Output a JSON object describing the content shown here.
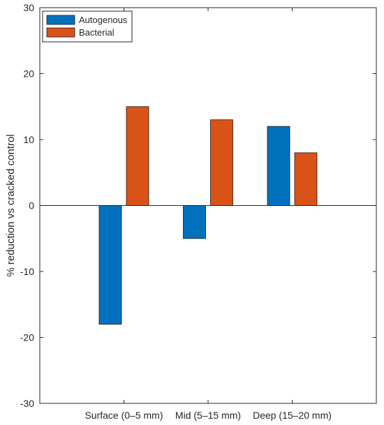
{
  "chart_data": {
    "type": "bar",
    "title": "",
    "xlabel": "",
    "ylabel": "% reduction vs cracked control",
    "categories": [
      "Surface (0–5 mm)",
      "Mid (5–15 mm)",
      "Deep (15–20 mm)"
    ],
    "series": [
      {
        "name": "Autogenous",
        "values": [
          -18,
          -5,
          12
        ],
        "color": "#0072BD"
      },
      {
        "name": "Bacterial",
        "values": [
          15,
          13,
          8
        ],
        "color": "#D95319"
      }
    ],
    "ylim": [
      -30,
      30
    ],
    "yticks": [
      -30,
      -20,
      -10,
      0,
      10,
      20,
      30
    ],
    "grid": false,
    "legend_position": "top-left",
    "baseline": 0
  }
}
